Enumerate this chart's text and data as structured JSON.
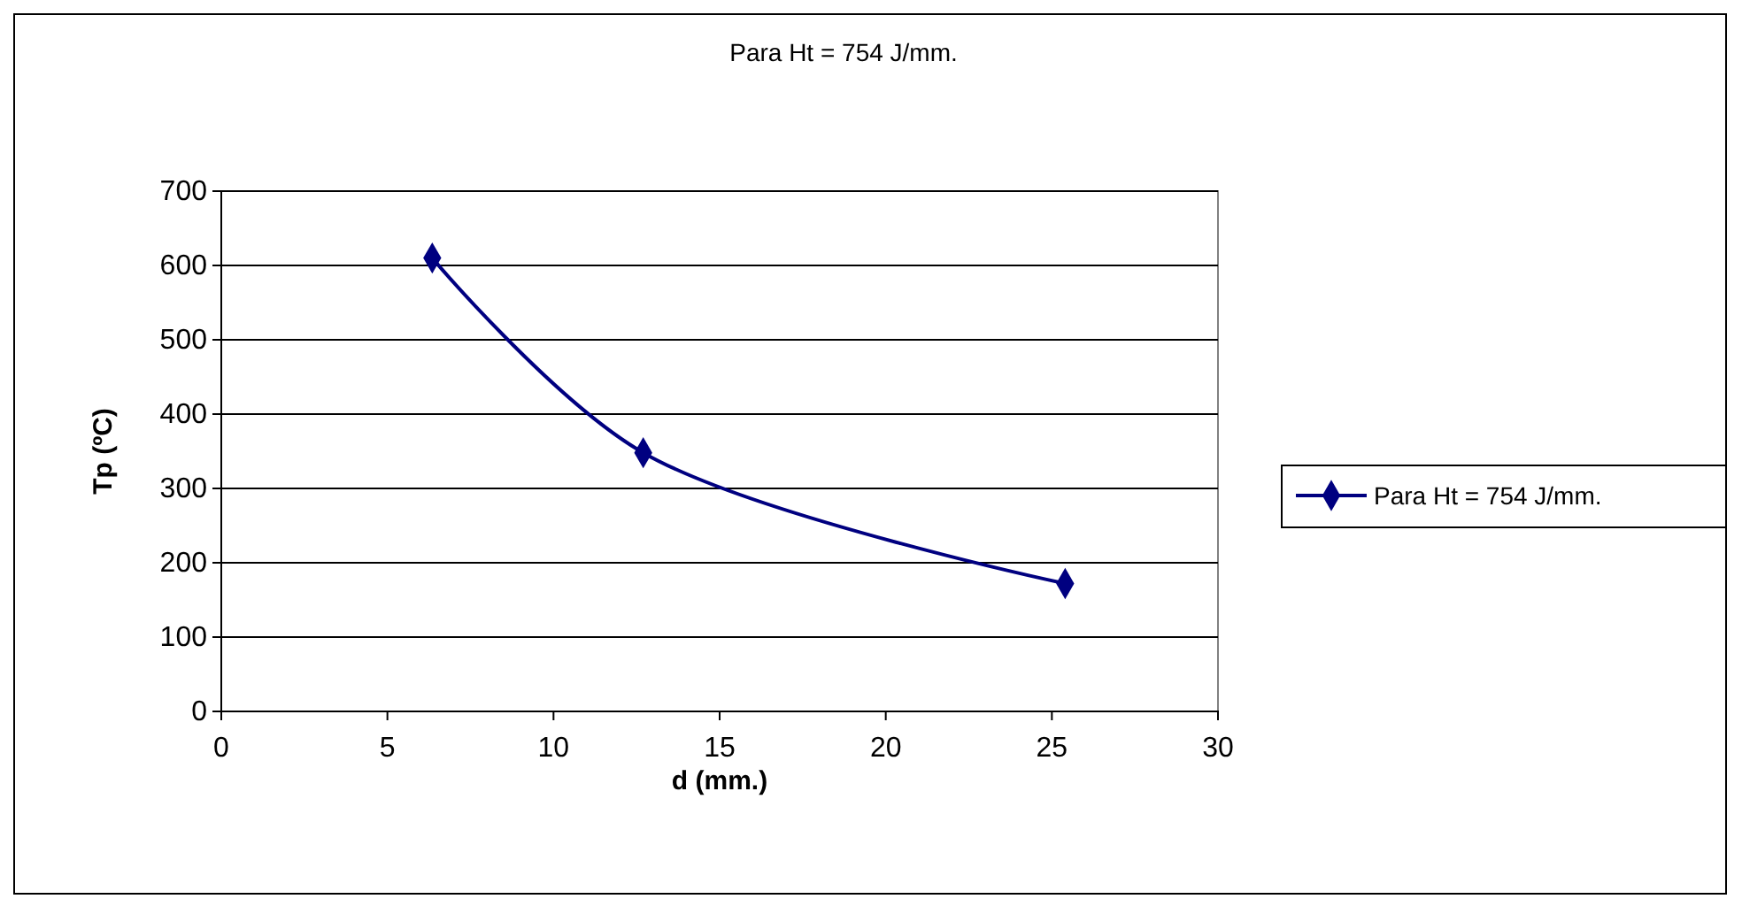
{
  "chart_data": {
    "type": "line",
    "title": "Para Ht = 754 J/mm.",
    "xlabel": "d (mm.)",
    "ylabel": "Tp (ºC)",
    "x": [
      6.35,
      12.7,
      25.4
    ],
    "series": [
      {
        "name": "Para Ht = 754 J/mm.",
        "color": "#000080",
        "values": [
          610,
          348,
          172
        ]
      }
    ],
    "xlim": [
      0,
      30
    ],
    "xticks": [
      0,
      5,
      10,
      15,
      20,
      25,
      30
    ],
    "ylim": [
      0,
      700
    ],
    "yticks": [
      0,
      100,
      200,
      300,
      400,
      500,
      600,
      700
    ],
    "grid": "y",
    "legend": "right",
    "marker": "diamond",
    "line_style": "solid"
  }
}
